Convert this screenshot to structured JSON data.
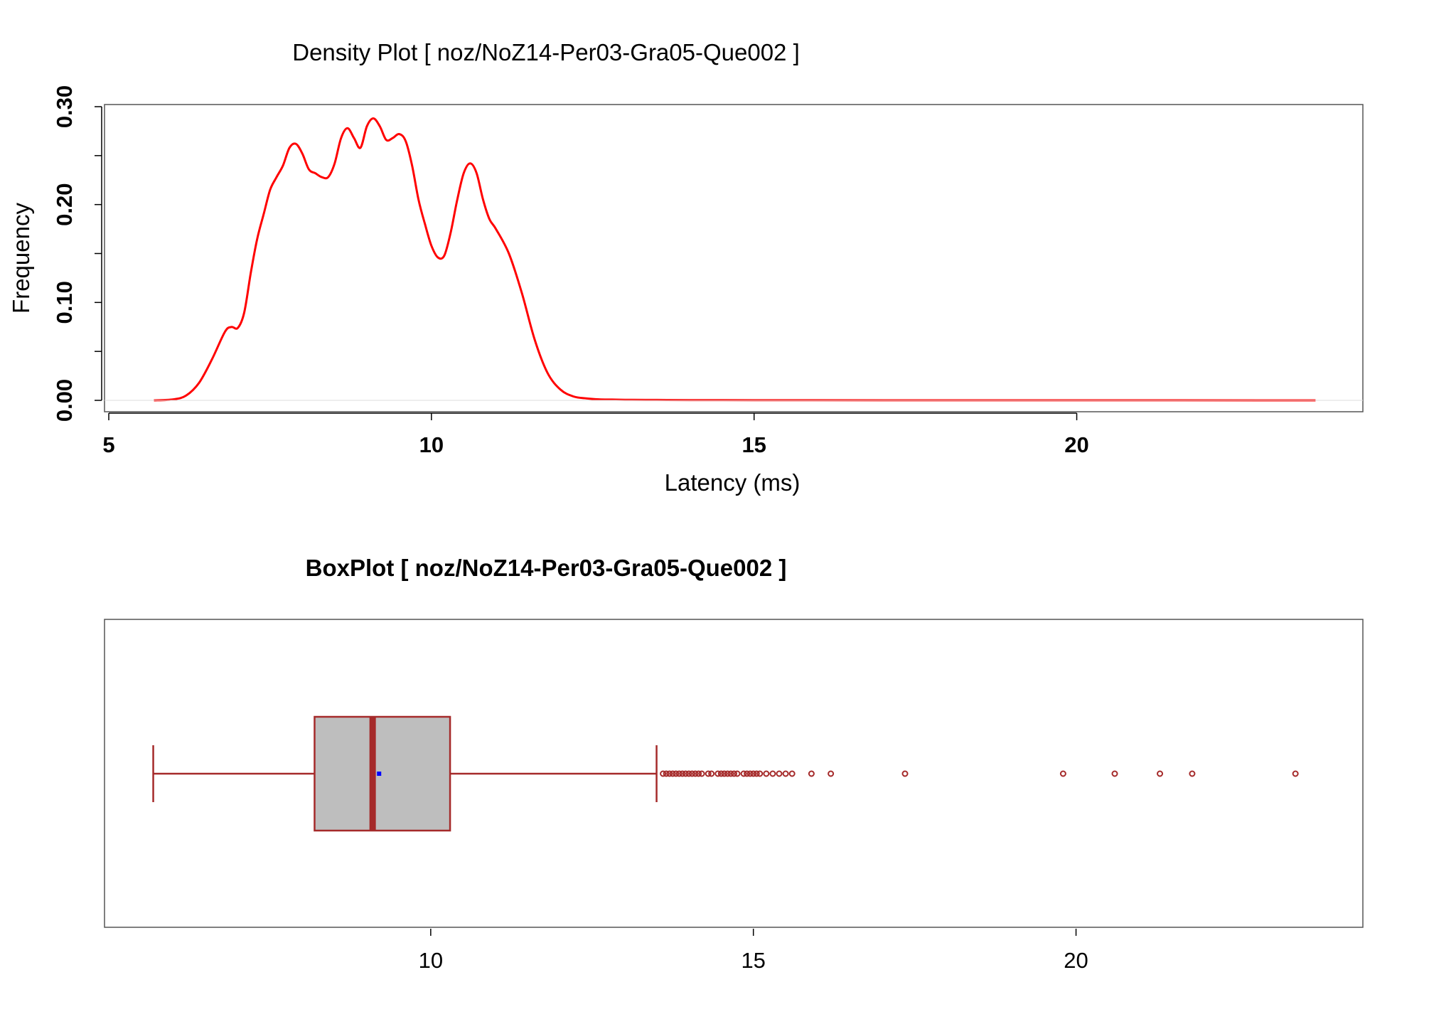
{
  "colors": {
    "density_line": "#ff0000",
    "box_stroke": "#a52a2a",
    "box_fill": "#bebebe",
    "mean_marker": "#0000ff",
    "frame": "#555555"
  },
  "chart_data": [
    {
      "type": "line",
      "title": "Density Plot [ noz/NoZ14-Per03-Gra05-Que002 ]",
      "xlabel": "Latency (ms)",
      "ylabel": "Frequency",
      "xlim": [
        5,
        24.5
      ],
      "ylim": [
        0,
        0.3
      ],
      "x_ticks": [
        5,
        10,
        15,
        20
      ],
      "x_tick_labels": [
        "5",
        "10",
        "15",
        "20"
      ],
      "y_ticks": [
        0.0,
        0.05,
        0.1,
        0.15,
        0.2,
        0.25,
        0.3
      ],
      "y_tick_labels": [
        "0.00",
        "",
        "0.10",
        "",
        "0.20",
        "",
        "0.30"
      ],
      "grid": false,
      "series": [
        {
          "x": [
            5.7,
            6.0,
            6.2,
            6.4,
            6.6,
            6.8,
            6.9,
            7.0,
            7.1,
            7.2,
            7.3,
            7.4,
            7.5,
            7.6,
            7.7,
            7.8,
            7.9,
            8.0,
            8.1,
            8.2,
            8.3,
            8.4,
            8.5,
            8.6,
            8.7,
            8.8,
            8.9,
            9.0,
            9.1,
            9.2,
            9.3,
            9.4,
            9.5,
            9.6,
            9.7,
            9.8,
            9.9,
            10.0,
            10.1,
            10.2,
            10.3,
            10.4,
            10.5,
            10.6,
            10.7,
            10.8,
            10.9,
            11.0,
            11.2,
            11.4,
            11.6,
            11.8,
            12.0,
            12.2,
            12.4,
            12.6,
            12.8,
            13.0,
            13.5,
            14.0,
            15.0,
            17.0,
            20.0,
            23.7
          ],
          "y": [
            0.0,
            0.001,
            0.005,
            0.018,
            0.042,
            0.07,
            0.075,
            0.074,
            0.09,
            0.13,
            0.165,
            0.19,
            0.215,
            0.228,
            0.24,
            0.258,
            0.262,
            0.252,
            0.236,
            0.232,
            0.228,
            0.228,
            0.242,
            0.268,
            0.278,
            0.268,
            0.258,
            0.28,
            0.288,
            0.28,
            0.266,
            0.268,
            0.272,
            0.265,
            0.24,
            0.205,
            0.18,
            0.158,
            0.146,
            0.148,
            0.172,
            0.205,
            0.232,
            0.242,
            0.232,
            0.205,
            0.185,
            0.175,
            0.15,
            0.11,
            0.062,
            0.028,
            0.011,
            0.004,
            0.002,
            0.001,
            0.0008,
            0.0006,
            0.0004,
            0.0003,
            0.0002,
            0.0001,
            0.0001,
            0.0
          ]
        }
      ]
    },
    {
      "type": "box",
      "title": "BoxPlot [ noz/NoZ14-Per03-Gra05-Que002 ]",
      "xlim": [
        5,
        24.5
      ],
      "x_ticks": [
        10,
        15,
        20
      ],
      "x_tick_labels": [
        "10",
        "15",
        "20"
      ],
      "whisker_low": 5.7,
      "q1": 8.2,
      "median": 9.1,
      "mean": 9.2,
      "q3": 10.3,
      "whisker_high": 13.5,
      "outliers": [
        13.6,
        13.65,
        13.7,
        13.75,
        13.8,
        13.85,
        13.9,
        13.95,
        14.0,
        14.05,
        14.1,
        14.15,
        14.2,
        14.3,
        14.35,
        14.45,
        14.5,
        14.55,
        14.6,
        14.65,
        14.7,
        14.75,
        14.85,
        14.9,
        14.95,
        15.0,
        15.05,
        15.1,
        15.2,
        15.3,
        15.4,
        15.5,
        15.6,
        15.9,
        16.2,
        17.35,
        19.8,
        20.6,
        21.3,
        21.8,
        23.4
      ]
    }
  ]
}
